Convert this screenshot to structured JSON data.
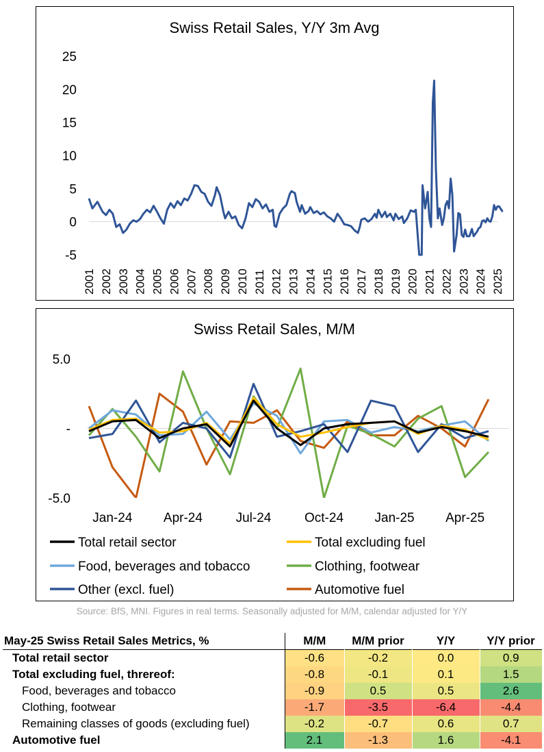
{
  "chart_data": [
    {
      "type": "line",
      "title": "Swiss Retail Sales, Y/Y 3m Avg",
      "ylim": [
        -5,
        25
      ],
      "yticks": [
        -5,
        0,
        5,
        10,
        15,
        20,
        25
      ],
      "xticks": [
        "2001",
        "2002",
        "2003",
        "2004",
        "2005",
        "2006",
        "2007",
        "2008",
        "2009",
        "2010",
        "2011",
        "2012",
        "2013",
        "2014",
        "2015",
        "2016",
        "2017",
        "2018",
        "2019",
        "2020",
        "2021",
        "2022",
        "2023",
        "2024",
        "2025"
      ],
      "color": "#2f5597",
      "series": [
        {
          "name": "Swiss Retail Sales Y/Y 3m Avg",
          "points": [
            [
              2001.0,
              3.5
            ],
            [
              2001.2,
              2.0
            ],
            [
              2001.5,
              3.0
            ],
            [
              2001.8,
              1.5
            ],
            [
              2002.0,
              1.0
            ],
            [
              2002.2,
              1.8
            ],
            [
              2002.4,
              1.2
            ],
            [
              2002.6,
              -0.8
            ],
            [
              2002.8,
              -0.4
            ],
            [
              2003.0,
              -1.7
            ],
            [
              2003.2,
              -1.2
            ],
            [
              2003.4,
              -0.3
            ],
            [
              2003.6,
              0.2
            ],
            [
              2003.8,
              0.0
            ],
            [
              2004.0,
              0.4
            ],
            [
              2004.2,
              1.2
            ],
            [
              2004.4,
              1.8
            ],
            [
              2004.6,
              1.4
            ],
            [
              2004.8,
              2.4
            ],
            [
              2005.0,
              1.5
            ],
            [
              2005.2,
              0.5
            ],
            [
              2005.4,
              -0.3
            ],
            [
              2005.6,
              1.8
            ],
            [
              2005.8,
              2.8
            ],
            [
              2006.0,
              2.1
            ],
            [
              2006.2,
              3.1
            ],
            [
              2006.4,
              2.5
            ],
            [
              2006.6,
              3.5
            ],
            [
              2006.8,
              3.2
            ],
            [
              2007.0,
              4.2
            ],
            [
              2007.2,
              5.5
            ],
            [
              2007.4,
              5.4
            ],
            [
              2007.6,
              4.5
            ],
            [
              2007.8,
              4.2
            ],
            [
              2008.0,
              3.0
            ],
            [
              2008.2,
              2.4
            ],
            [
              2008.4,
              4.0
            ],
            [
              2008.5,
              5.2
            ],
            [
              2008.7,
              4.0
            ],
            [
              2008.9,
              1.5
            ],
            [
              2009.0,
              0.5
            ],
            [
              2009.2,
              1.5
            ],
            [
              2009.4,
              0.5
            ],
            [
              2009.6,
              0.8
            ],
            [
              2009.8,
              -0.5
            ],
            [
              2010.0,
              -1.0
            ],
            [
              2010.2,
              0.5
            ],
            [
              2010.4,
              2.8
            ],
            [
              2010.6,
              2.2
            ],
            [
              2010.8,
              3.4
            ],
            [
              2011.0,
              3.0
            ],
            [
              2011.2,
              2.0
            ],
            [
              2011.4,
              2.6
            ],
            [
              2011.6,
              1.5
            ],
            [
              2011.8,
              1.8
            ],
            [
              2011.9,
              -0.6
            ],
            [
              2012.0,
              -0.8
            ],
            [
              2012.2,
              1.2
            ],
            [
              2012.4,
              2.0
            ],
            [
              2012.6,
              2.5
            ],
            [
              2012.8,
              4.2
            ],
            [
              2012.9,
              4.6
            ],
            [
              2013.1,
              4.3
            ],
            [
              2013.2,
              3.0
            ],
            [
              2013.4,
              1.5
            ],
            [
              2013.5,
              2.5
            ],
            [
              2013.7,
              1.2
            ],
            [
              2013.9,
              1.6
            ],
            [
              2014.0,
              2.2
            ],
            [
              2014.2,
              1.3
            ],
            [
              2014.4,
              1.6
            ],
            [
              2014.6,
              1.1
            ],
            [
              2014.8,
              1.4
            ],
            [
              2015.0,
              0.8
            ],
            [
              2015.2,
              0.5
            ],
            [
              2015.4,
              0.0
            ],
            [
              2015.6,
              1.2
            ],
            [
              2015.8,
              0.5
            ],
            [
              2016.0,
              -0.4
            ],
            [
              2016.2,
              -0.5
            ],
            [
              2016.4,
              -0.7
            ],
            [
              2016.6,
              -1.3
            ],
            [
              2016.8,
              -1.7
            ],
            [
              2016.9,
              -0.9
            ],
            [
              2017.0,
              0.3
            ],
            [
              2017.2,
              0.5
            ],
            [
              2017.4,
              0.0
            ],
            [
              2017.6,
              0.4
            ],
            [
              2017.8,
              1.2
            ],
            [
              2017.9,
              0.6
            ],
            [
              2018.0,
              1.8
            ],
            [
              2018.2,
              0.7
            ],
            [
              2018.4,
              1.5
            ],
            [
              2018.5,
              0.7
            ],
            [
              2018.7,
              1.2
            ],
            [
              2018.9,
              0.2
            ],
            [
              2019.0,
              1.2
            ],
            [
              2019.2,
              0.4
            ],
            [
              2019.4,
              0.8
            ],
            [
              2019.5,
              -0.2
            ],
            [
              2019.7,
              0.5
            ],
            [
              2019.9,
              1.7
            ],
            [
              2020.1,
              1.5
            ],
            [
              2020.2,
              1.8
            ],
            [
              2020.4,
              -5.0
            ],
            [
              2020.55,
              -5.0
            ],
            [
              2020.6,
              5.5
            ],
            [
              2020.75,
              2.0
            ],
            [
              2020.9,
              4.5
            ],
            [
              2021.0,
              0.5
            ],
            [
              2021.1,
              -0.8
            ],
            [
              2021.2,
              18.0
            ],
            [
              2021.28,
              21.3
            ],
            [
              2021.38,
              8.0
            ],
            [
              2021.5,
              0.5
            ],
            [
              2021.6,
              2.0
            ],
            [
              2021.75,
              -0.5
            ],
            [
              2021.85,
              0.5
            ],
            [
              2021.95,
              2.5
            ],
            [
              2022.05,
              3.1
            ],
            [
              2022.15,
              2.0
            ],
            [
              2022.25,
              6.5
            ],
            [
              2022.35,
              4.0
            ],
            [
              2022.45,
              -4.5
            ],
            [
              2022.6,
              -2.0
            ],
            [
              2022.7,
              1.3
            ],
            [
              2022.8,
              1.1
            ],
            [
              2022.9,
              -2.0
            ],
            [
              2023.0,
              -2.3
            ],
            [
              2023.1,
              -1.2
            ],
            [
              2023.2,
              -2.2
            ],
            [
              2023.35,
              -2.2
            ],
            [
              2023.5,
              -1.1
            ],
            [
              2023.6,
              -2.2
            ],
            [
              2023.8,
              -1.5
            ],
            [
              2023.9,
              -1.0
            ],
            [
              2024.0,
              -0.8
            ],
            [
              2024.1,
              0.1
            ],
            [
              2024.2,
              0.2
            ],
            [
              2024.3,
              -0.1
            ],
            [
              2024.4,
              0.5
            ],
            [
              2024.5,
              0.1
            ],
            [
              2024.6,
              0.0
            ],
            [
              2024.7,
              0.8
            ],
            [
              2024.8,
              2.5
            ],
            [
              2024.9,
              1.8
            ],
            [
              2025.0,
              2.3
            ],
            [
              2025.1,
              2.3
            ],
            [
              2025.2,
              1.9
            ],
            [
              2025.3,
              1.5
            ]
          ]
        }
      ]
    },
    {
      "type": "line",
      "title": "Swiss Retail Sales, M/M",
      "ylim": [
        -5.0,
        5.0
      ],
      "ytick_labels": [
        "5.0",
        "-",
        "-5.0"
      ],
      "xticks": [
        "Jan-24",
        "Apr-24",
        "Jul-24",
        "Oct-24",
        "Jan-25",
        "Apr-25"
      ],
      "x": [
        "Dec-23",
        "Jan-24",
        "Feb-24",
        "Mar-24",
        "Apr-24",
        "May-24",
        "Jun-24",
        "Jul-24",
        "Aug-24",
        "Sep-24",
        "Oct-24",
        "Nov-24",
        "Dec-24",
        "Jan-25",
        "Feb-25",
        "Mar-25",
        "Apr-25",
        "May-25"
      ],
      "legend_placement": "bottom",
      "series": [
        {
          "name": "Total retail sector",
          "color": "#000000",
          "values": [
            -0.2,
            0.5,
            0.6,
            -0.7,
            0.0,
            0.3,
            -1.3,
            2.0,
            0.0,
            -1.2,
            0.0,
            0.3,
            0.4,
            0.5,
            -0.3,
            0.1,
            -0.2,
            -0.6
          ]
        },
        {
          "name": "Total excluding fuel",
          "color": "#ffc000",
          "values": [
            -0.1,
            0.6,
            0.7,
            -0.3,
            -0.2,
            0.4,
            -1.1,
            2.2,
            0.3,
            -0.6,
            -0.3,
            0.1,
            0.4,
            0.5,
            -0.4,
            0.2,
            -0.1,
            -0.8
          ]
        },
        {
          "name": "Food, beverages and tobacco",
          "color": "#6fa8dc",
          "values": [
            0.0,
            1.3,
            1.0,
            -0.5,
            -0.4,
            1.2,
            -0.8,
            1.8,
            0.9,
            -1.8,
            0.5,
            0.6,
            -0.3,
            0.1,
            -0.2,
            0.2,
            0.5,
            -0.9
          ]
        },
        {
          "name": "Clothing, footwear",
          "color": "#70ad47",
          "values": [
            -0.5,
            1.4,
            -0.6,
            -3.1,
            4.1,
            0.0,
            -3.3,
            2.3,
            0.0,
            4.3,
            -5.0,
            0.2,
            -0.4,
            -1.3,
            0.7,
            1.6,
            -3.5,
            -1.7
          ]
        },
        {
          "name": "Other (excl. fuel)",
          "color": "#2f5597",
          "values": [
            -0.7,
            -0.4,
            2.0,
            -1.0,
            0.4,
            0.0,
            -2.1,
            3.2,
            -0.6,
            -0.2,
            0.3,
            -1.7,
            2.0,
            1.6,
            -1.7,
            0.3,
            -0.7,
            -0.2
          ]
        },
        {
          "name": "Automotive fuel",
          "color": "#c55a11",
          "values": [
            1.6,
            -2.8,
            -5.0,
            2.5,
            1.2,
            -2.6,
            0.5,
            0.4,
            1.3,
            -0.9,
            -1.4,
            0.5,
            -0.5,
            -0.5,
            0.9,
            0.0,
            -1.3,
            2.1
          ]
        }
      ]
    }
  ],
  "source_note": "Source: BfS, MNI. Figures in real terms. Seasonally adjusted for M/M, calendar adjusted for Y/Y",
  "table": {
    "title": "May-25 Swiss Retail Sales Metrics, %",
    "columns": [
      "M/M",
      "M/M prior",
      "Y/Y",
      "Y/Y prior"
    ],
    "rows": [
      {
        "label": "Total retail sector",
        "level": 0,
        "values": [
          "-0.6",
          "-0.2",
          "0.0",
          "0.9"
        ],
        "colors": [
          "#fde184",
          "#f3e783",
          "#ffe984",
          "#cfe182"
        ]
      },
      {
        "label": "Total excluding fuel, threreof:",
        "level": 0,
        "values": [
          "-0.8",
          "-0.1",
          "0.1",
          "1.5"
        ],
        "colors": [
          "#fed881",
          "#eee683",
          "#fce983",
          "#b4d880"
        ]
      },
      {
        "label": "Food, beverages and tobacco",
        "level": 1,
        "values": [
          "-0.9",
          "0.5",
          "0.5",
          "2.6"
        ],
        "colors": [
          "#fed280",
          "#cfe182",
          "#ebe583",
          "#63be7b"
        ]
      },
      {
        "label": "Clothing, footwear",
        "level": 1,
        "values": [
          "-1.7",
          "-3.5",
          "-6.4",
          "-4.4"
        ],
        "colors": [
          "#fbaa77",
          "#f8696b",
          "#f8696b",
          "#f98b71"
        ]
      },
      {
        "label": "Remaining classes of goods (excluding fuel)",
        "level": 1,
        "values": [
          "-0.2",
          "-0.7",
          "0.6",
          "0.7"
        ],
        "colors": [
          "#dde383",
          "#ffde82",
          "#e8e583",
          "#e0e383"
        ]
      },
      {
        "label": "Automotive fuel",
        "level": 0,
        "values": [
          "2.1",
          "-1.3",
          "1.6",
          "-4.1"
        ],
        "colors": [
          "#63be7b",
          "#fcbe7b",
          "#b6d880",
          "#f98c71"
        ]
      }
    ]
  }
}
